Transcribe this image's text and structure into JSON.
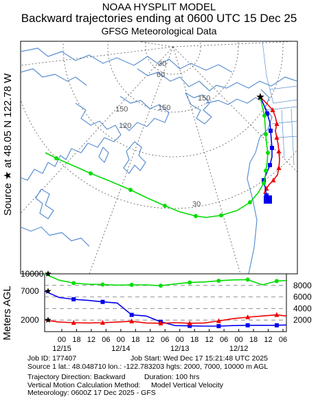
{
  "header": {
    "line1": "NOAA HYSPLIT MODEL",
    "line2": "Backward trajectories ending at 0600 UTC 15 Dec 25",
    "line3": "GFSG Meteorological Data"
  },
  "side_label": "Source ★ at 48.05 N 122.78 W",
  "colors": {
    "red": "#ee0000",
    "blue": "#0000ee",
    "green": "#00dd00",
    "map": "#5b8fd0",
    "grid": "#555555"
  },
  "chart_data": [
    {
      "type": "map",
      "map_labels": [
        "30",
        "60",
        "150",
        "120",
        "150",
        "150",
        "30"
      ],
      "series": [
        {
          "name": "2000",
          "color": "red",
          "marker": "triangle"
        },
        {
          "name": "7000",
          "color": "blue",
          "marker": "square"
        },
        {
          "name": "10000",
          "color": "green",
          "marker": "circle"
        }
      ]
    },
    {
      "type": "line",
      "ylabel": "Meters AGL",
      "yticks_right": [
        8000,
        6000,
        4000,
        2000
      ],
      "start_labels_left": [
        "10000",
        "7000",
        "2000"
      ],
      "xtick_hours": [
        "00",
        "18",
        "12",
        "06",
        "00",
        "18",
        "12",
        "06",
        "00",
        "18",
        "12",
        "06",
        "00",
        "18",
        "12",
        "06"
      ],
      "xtick_dates": [
        "12/15",
        "12/14",
        "12/13",
        "12/12"
      ],
      "x": [
        0,
        6,
        12,
        18,
        24,
        30,
        36,
        42,
        48,
        54,
        60,
        66,
        72,
        78,
        84,
        90,
        96,
        100
      ],
      "series": [
        {
          "name": "10000",
          "color": "green",
          "values": [
            10000,
            8900,
            8400,
            8200,
            8150,
            8050,
            8100,
            8100,
            7950,
            8250,
            8500,
            8600,
            8800,
            8950,
            9000,
            8100,
            8750,
            8850
          ]
        },
        {
          "name": "7000",
          "color": "blue",
          "values": [
            7000,
            5900,
            5600,
            5400,
            5150,
            4950,
            2900,
            2700,
            1700,
            1050,
            1000,
            950,
            950,
            1050,
            1100,
            1100,
            1100,
            1150
          ]
        },
        {
          "name": "2000",
          "color": "red",
          "values": [
            2000,
            1650,
            1550,
            1500,
            1550,
            1650,
            1800,
            1500,
            1450,
            1550,
            1450,
            1500,
            1850,
            2250,
            2500,
            2700,
            2900,
            2700
          ]
        }
      ]
    }
  ],
  "footer": {
    "job_id": "Job ID: 177407",
    "job_start": "Job Start: Wed Dec 17 15:21:48 UTC 2025",
    "source": "Source 1 lat.: 48.048710  lon.: -122.783203  hgts: 2000, 7000, 10000 m AGL",
    "direction": "Trajectory Direction: Backward",
    "duration": "Duration: 100 hrs",
    "vertical_label": "Vertical Motion Calculation Method:",
    "vertical_value": "Model Vertical Velocity",
    "meteorology": "Meteorology: 0600Z 17 Dec 2025 - GFS"
  }
}
